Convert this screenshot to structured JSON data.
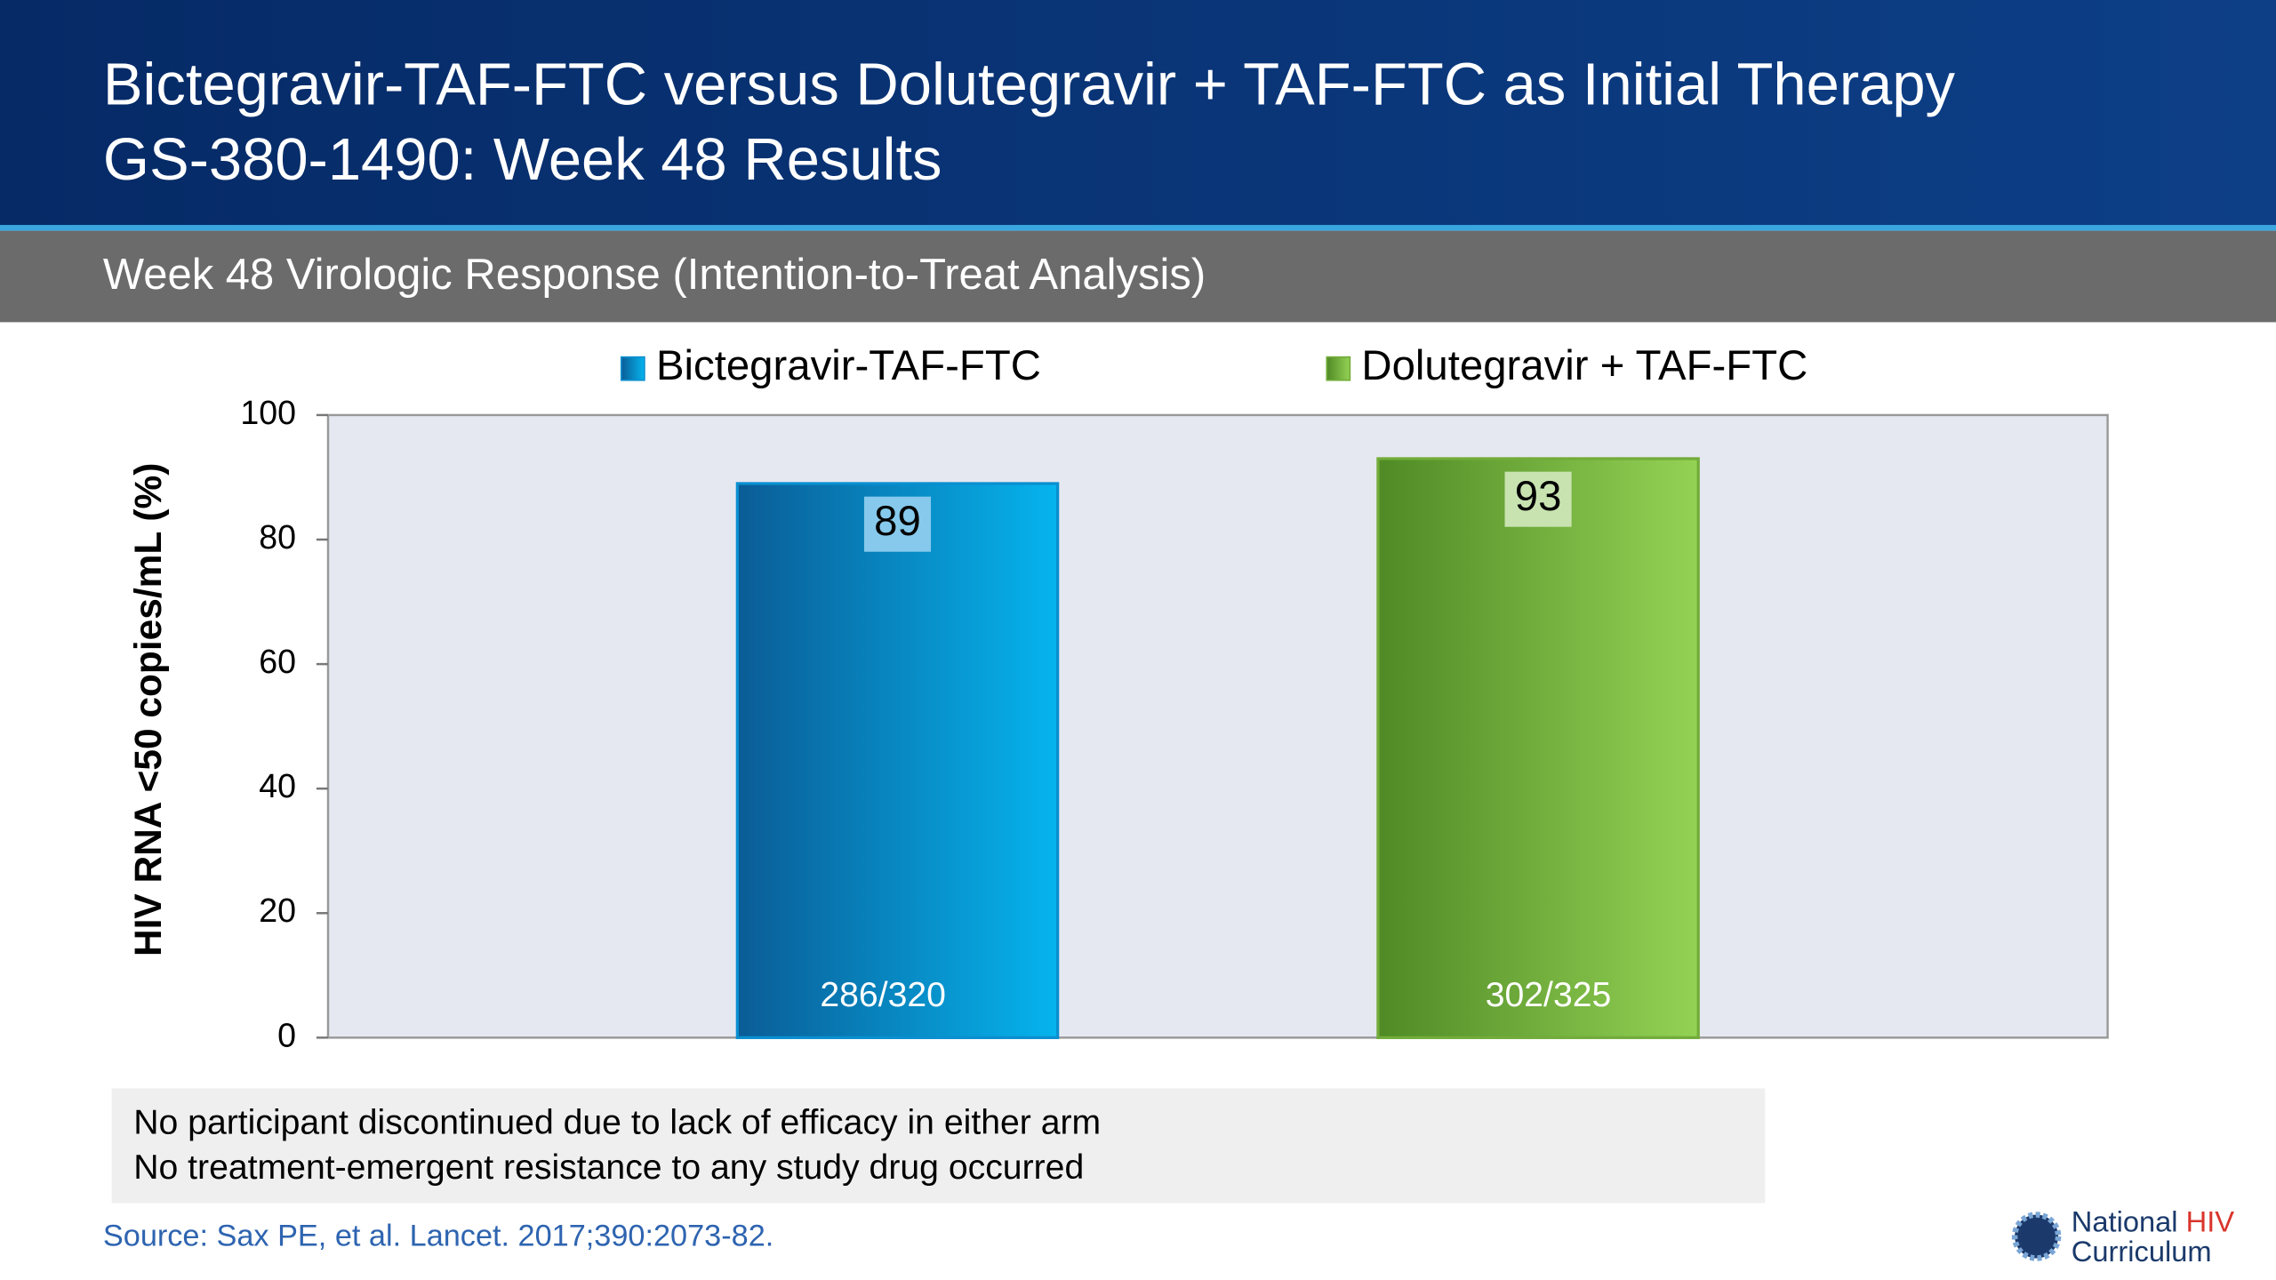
{
  "header": {
    "title_lines": [
      "Bictegravir-TAF-FTC versus Dolutegravir + TAF-FTC as Initial Therapy",
      "GS-380-1490: Week 48 Results"
    ],
    "subtitle": "Week 48 Virologic Response (Intention-to-Treat Analysis)"
  },
  "chart_data": {
    "type": "bar",
    "categories": [
      null
    ],
    "ylabel": "HIV RNA <50 copies/mL (%)",
    "ylim": [
      0,
      100
    ],
    "yticks": [
      0,
      20,
      40,
      60,
      80,
      100
    ],
    "series": [
      {
        "name": "Bictegravir-TAF-FTC",
        "color": "#0a8fd0",
        "values": [
          89
        ],
        "n_labels": [
          "286/320"
        ]
      },
      {
        "name": "Dolutegravir + TAF-FTC",
        "color": "#72ac3a",
        "values": [
          93
        ],
        "n_labels": [
          "302/325"
        ]
      }
    ]
  },
  "notes": [
    "No participant discontinued due to lack of efficacy in either arm",
    "No treatment-emergent resistance to any study drug occurred"
  ],
  "source": "Source: Sax PE, et al. Lancet. 2017;390:2073-82.",
  "logo": {
    "line1": [
      "National",
      "HIV"
    ],
    "line2": "Curriculum"
  }
}
